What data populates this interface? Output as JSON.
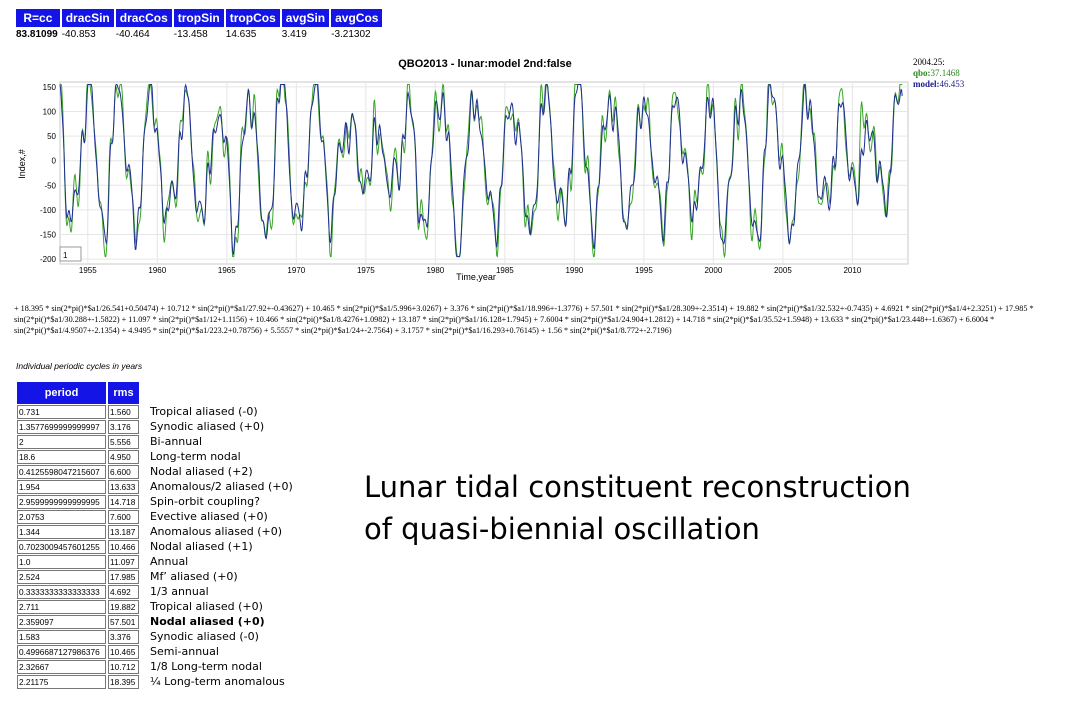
{
  "stats": {
    "headers": [
      "R=cc",
      "dracSin",
      "dracCos",
      "tropSin",
      "tropCos",
      "avgSin",
      "avgCos"
    ],
    "values": [
      "83.81099",
      "-40.853",
      "-40.464",
      "-13.458",
      "14.635",
      "3.419",
      "-3.21302"
    ]
  },
  "chart_data": {
    "type": "line",
    "title": "QBO2013 - lunar:model 2nd:false",
    "xlabel": "Time,year",
    "ylabel": "Index,#",
    "xlim": [
      1953,
      2014
    ],
    "ylim": [
      -210,
      160
    ],
    "xticks": [
      1955,
      1960,
      1965,
      1970,
      1975,
      1980,
      1985,
      1990,
      1995,
      2000,
      2005,
      2010
    ],
    "yticks": [
      150,
      100,
      50,
      0,
      -50,
      -100,
      -150,
      -200
    ],
    "grid": true,
    "series": [
      {
        "name": "qbo",
        "color": "#3aa52a"
      },
      {
        "name": "model",
        "color": "#1f2f8f"
      }
    ],
    "readout": {
      "date": "2004.25:",
      "qbo_label": "qbo:",
      "qbo_value": "37.1468",
      "model_label": "model:",
      "model_value": "46.453"
    },
    "cursor_box": "1"
  },
  "equation": "+ 18.395 * sin(2*pi()*$a1/26.541+0.50474) + 10.712 * sin(2*pi()*$a1/27.92+-0.43627) + 10.465 * sin(2*pi()*$a1/5.996+3.0267) + 3.376 * sin(2*pi()*$a1/18.996+-1.3776) + 57.501 * sin(2*pi()*$a1/28.309+-2.3514) + 19.882 * sin(2*pi()*$a1/32.532+-0.7435) + 4.6921 * sin(2*pi()*$a1/4+2.3251) + 17.985 * sin(2*pi()*$a1/30.288+-1.5822) + 11.097 * sin(2*pi()*$a1/12+1.1156) + 10.466 * sin(2*pi()*$a1/8.4276+1.0982) + 13.187 * sin(2*pi()*$a1/16.128+1.7945) + 7.6004 * sin(2*pi()*$a1/24.904+1.2812) + 14.718 * sin(2*pi()*$a1/35.52+1.5948) + 13.633 * sin(2*pi()*$a1/23.448+-1.6367) + 6.6004 * sin(2*pi()*$a1/4.9507+-2.1354) + 4.9495 * sin(2*pi()*$a1/223.2+0.78756) + 5.5557 * sin(2*pi()*$a1/24+-2.7564) + 3.1757 * sin(2*pi()*$a1/16.293+0.76145) + 1.56 * sin(2*pi()*$a1/8.772+-2.7196)",
  "cycles": {
    "caption": "Individual periodic cycles in years",
    "headers": {
      "period": "period",
      "rms": "rms"
    },
    "rows": [
      {
        "period": "0.731",
        "rms": "1.560",
        "desc": "Tropical aliased (-0)",
        "bold": false
      },
      {
        "period": "1.3577699999999997",
        "rms": "3.176",
        "desc": "Synodic aliased (+0)",
        "bold": false
      },
      {
        "period": "2",
        "rms": "5.556",
        "desc": "Bi-annual",
        "bold": false
      },
      {
        "period": "18.6",
        "rms": "4.950",
        "desc": "Long-term nodal",
        "bold": false
      },
      {
        "period": "0.4125598047215607",
        "rms": "6.600",
        "desc": "Nodal aliased (+2)",
        "bold": false
      },
      {
        "period": "1.954",
        "rms": "13.633",
        "desc": "Anomalous/2 aliased (+0)",
        "bold": false
      },
      {
        "period": "2.9599999999999995",
        "rms": "14.718",
        "desc": "Spin-orbit coupling?",
        "bold": false
      },
      {
        "period": "2.0753",
        "rms": "7.600",
        "desc": "Evective aliased (+0)",
        "bold": false
      },
      {
        "period": "1.344",
        "rms": "13.187",
        "desc": "Anomalous aliased (+0)",
        "bold": false
      },
      {
        "period": "0.7023009457601255",
        "rms": "10.466",
        "desc": "Nodal aliased (+1)",
        "bold": false
      },
      {
        "period": "1.0",
        "rms": "11.097",
        "desc": "Annual",
        "bold": false
      },
      {
        "period": "2.524",
        "rms": "17.985",
        "desc": "Mf’ aliased (+0)",
        "bold": false
      },
      {
        "period": "0.3333333333333333",
        "rms": "4.692",
        "desc": "1/3 annual",
        "bold": false
      },
      {
        "period": "2.711",
        "rms": "19.882",
        "desc": "Tropical aliased (+0)",
        "bold": false
      },
      {
        "period": "2.359097",
        "rms": "57.501",
        "desc": "Nodal aliased (+0)",
        "bold": true
      },
      {
        "period": "1.583",
        "rms": "3.376",
        "desc": "Synodic aliased (-0)",
        "bold": false
      },
      {
        "period": "0.4996687127986376",
        "rms": "10.465",
        "desc": "Semi-annual",
        "bold": false
      },
      {
        "period": "2.32667",
        "rms": "10.712",
        "desc": "1/8 Long-term nodal",
        "bold": false
      },
      {
        "period": "2.21175",
        "rms": "18.395",
        "desc": "¼ Long-term anomalous",
        "bold": false
      }
    ]
  },
  "headline": {
    "line1": "Lunar tidal constituent reconstruction",
    "line2": "of quasi-biennial oscillation"
  }
}
